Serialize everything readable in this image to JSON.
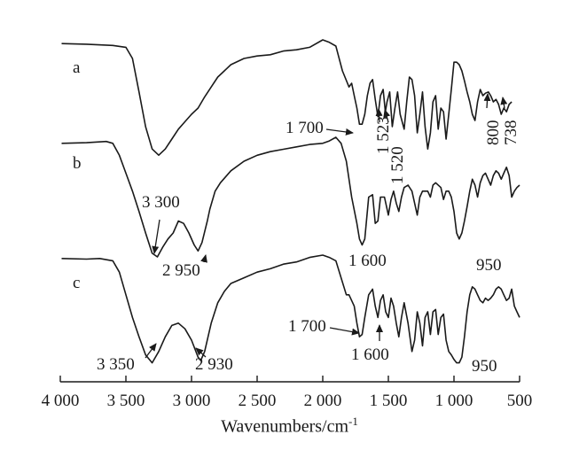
{
  "chart_data": {
    "type": "line",
    "title": "",
    "xlabel": "Wavenumbers/cm",
    "xlabel_superscript": "-1",
    "ylabel": "",
    "x_reversed": true,
    "xlim": [
      4000,
      500
    ],
    "x_ticks": [
      4000,
      3500,
      3000,
      2500,
      2000,
      1500,
      1000,
      500
    ],
    "x_tick_labels": [
      "4 000",
      "3 500",
      "3 000",
      "2 500",
      "2 000",
      "1 500",
      "1 000",
      "500"
    ],
    "grid": false,
    "legend": "none",
    "series": [
      {
        "name": "a",
        "points": [
          [
            3990,
            0.03
          ],
          [
            3800,
            0.035
          ],
          [
            3600,
            0.045
          ],
          [
            3500,
            0.06
          ],
          [
            3450,
            0.15
          ],
          [
            3400,
            0.42
          ],
          [
            3350,
            0.7
          ],
          [
            3300,
            0.88
          ],
          [
            3250,
            0.93
          ],
          [
            3200,
            0.88
          ],
          [
            3150,
            0.8
          ],
          [
            3100,
            0.72
          ],
          [
            3050,
            0.66
          ],
          [
            3000,
            0.6
          ],
          [
            2950,
            0.55
          ],
          [
            2900,
            0.46
          ],
          [
            2850,
            0.38
          ],
          [
            2800,
            0.3
          ],
          [
            2700,
            0.2
          ],
          [
            2600,
            0.15
          ],
          [
            2500,
            0.13
          ],
          [
            2400,
            0.12
          ],
          [
            2300,
            0.09
          ],
          [
            2200,
            0.08
          ],
          [
            2100,
            0.06
          ],
          [
            2000,
            0.0
          ],
          [
            1950,
            0.02
          ],
          [
            1900,
            0.05
          ],
          [
            1850,
            0.25
          ],
          [
            1800,
            0.38
          ],
          [
            1780,
            0.35
          ],
          [
            1760,
            0.45
          ],
          [
            1740,
            0.55
          ],
          [
            1720,
            0.68
          ],
          [
            1700,
            0.68
          ],
          [
            1680,
            0.6
          ],
          [
            1660,
            0.45
          ],
          [
            1640,
            0.35
          ],
          [
            1620,
            0.32
          ],
          [
            1600,
            0.48
          ],
          [
            1580,
            0.62
          ],
          [
            1560,
            0.45
          ],
          [
            1540,
            0.4
          ],
          [
            1523,
            0.58
          ],
          [
            1510,
            0.5
          ],
          [
            1490,
            0.42
          ],
          [
            1470,
            0.7
          ],
          [
            1450,
            0.55
          ],
          [
            1430,
            0.42
          ],
          [
            1410,
            0.6
          ],
          [
            1380,
            0.72
          ],
          [
            1360,
            0.5
          ],
          [
            1340,
            0.3
          ],
          [
            1320,
            0.32
          ],
          [
            1300,
            0.45
          ],
          [
            1280,
            0.75
          ],
          [
            1260,
            0.6
          ],
          [
            1240,
            0.42
          ],
          [
            1220,
            0.7
          ],
          [
            1200,
            0.88
          ],
          [
            1180,
            0.75
          ],
          [
            1160,
            0.5
          ],
          [
            1140,
            0.45
          ],
          [
            1120,
            0.72
          ],
          [
            1100,
            0.55
          ],
          [
            1080,
            0.58
          ],
          [
            1060,
            0.8
          ],
          [
            1040,
            0.6
          ],
          [
            1020,
            0.4
          ],
          [
            1000,
            0.18
          ],
          [
            980,
            0.18
          ],
          [
            960,
            0.2
          ],
          [
            940,
            0.25
          ],
          [
            920,
            0.33
          ],
          [
            900,
            0.42
          ],
          [
            880,
            0.5
          ],
          [
            860,
            0.6
          ],
          [
            840,
            0.65
          ],
          [
            820,
            0.5
          ],
          [
            800,
            0.4
          ],
          [
            780,
            0.45
          ],
          [
            760,
            0.43
          ],
          [
            738,
            0.42
          ],
          [
            720,
            0.45
          ],
          [
            700,
            0.5
          ],
          [
            680,
            0.48
          ],
          [
            660,
            0.52
          ],
          [
            640,
            0.6
          ],
          [
            620,
            0.55
          ],
          [
            600,
            0.58
          ],
          [
            580,
            0.52
          ],
          [
            560,
            0.5
          ]
        ]
      },
      {
        "name": "b",
        "points": [
          [
            3990,
            0.05
          ],
          [
            3800,
            0.045
          ],
          [
            3650,
            0.035
          ],
          [
            3600,
            0.05
          ],
          [
            3550,
            0.15
          ],
          [
            3500,
            0.3
          ],
          [
            3450,
            0.45
          ],
          [
            3400,
            0.62
          ],
          [
            3350,
            0.8
          ],
          [
            3300,
            0.97
          ],
          [
            3260,
            1.0
          ],
          [
            3220,
            0.92
          ],
          [
            3180,
            0.85
          ],
          [
            3140,
            0.8
          ],
          [
            3100,
            0.7
          ],
          [
            3060,
            0.72
          ],
          [
            3020,
            0.8
          ],
          [
            2980,
            0.9
          ],
          [
            2950,
            0.95
          ],
          [
            2920,
            0.88
          ],
          [
            2880,
            0.7
          ],
          [
            2860,
            0.6
          ],
          [
            2820,
            0.45
          ],
          [
            2780,
            0.38
          ],
          [
            2700,
            0.28
          ],
          [
            2600,
            0.2
          ],
          [
            2500,
            0.15
          ],
          [
            2400,
            0.12
          ],
          [
            2300,
            0.1
          ],
          [
            2200,
            0.08
          ],
          [
            2100,
            0.06
          ],
          [
            2000,
            0.05
          ],
          [
            1950,
            0.03
          ],
          [
            1900,
            0.0
          ],
          [
            1860,
            0.05
          ],
          [
            1820,
            0.2
          ],
          [
            1780,
            0.5
          ],
          [
            1740,
            0.72
          ],
          [
            1720,
            0.85
          ],
          [
            1700,
            0.9
          ],
          [
            1680,
            0.85
          ],
          [
            1650,
            0.5
          ],
          [
            1620,
            0.48
          ],
          [
            1600,
            0.72
          ],
          [
            1580,
            0.7
          ],
          [
            1560,
            0.5
          ],
          [
            1530,
            0.5
          ],
          [
            1500,
            0.65
          ],
          [
            1480,
            0.52
          ],
          [
            1460,
            0.45
          ],
          [
            1440,
            0.55
          ],
          [
            1420,
            0.62
          ],
          [
            1400,
            0.5
          ],
          [
            1380,
            0.42
          ],
          [
            1350,
            0.4
          ],
          [
            1320,
            0.45
          ],
          [
            1300,
            0.55
          ],
          [
            1280,
            0.65
          ],
          [
            1260,
            0.5
          ],
          [
            1240,
            0.45
          ],
          [
            1200,
            0.45
          ],
          [
            1180,
            0.5
          ],
          [
            1160,
            0.4
          ],
          [
            1140,
            0.38
          ],
          [
            1100,
            0.42
          ],
          [
            1080,
            0.52
          ],
          [
            1060,
            0.45
          ],
          [
            1040,
            0.45
          ],
          [
            1020,
            0.5
          ],
          [
            1000,
            0.62
          ],
          [
            980,
            0.8
          ],
          [
            960,
            0.85
          ],
          [
            940,
            0.8
          ],
          [
            920,
            0.7
          ],
          [
            900,
            0.58
          ],
          [
            880,
            0.45
          ],
          [
            860,
            0.35
          ],
          [
            840,
            0.4
          ],
          [
            820,
            0.5
          ],
          [
            800,
            0.38
          ],
          [
            780,
            0.32
          ],
          [
            760,
            0.3
          ],
          [
            740,
            0.35
          ],
          [
            720,
            0.4
          ],
          [
            700,
            0.32
          ],
          [
            680,
            0.28
          ],
          [
            660,
            0.3
          ],
          [
            640,
            0.35
          ],
          [
            620,
            0.3
          ],
          [
            600,
            0.25
          ],
          [
            580,
            0.32
          ],
          [
            560,
            0.5
          ],
          [
            540,
            0.45
          ],
          [
            520,
            0.42
          ],
          [
            500,
            0.4
          ]
        ]
      },
      {
        "name": "c",
        "points": [
          [
            3990,
            0.03
          ],
          [
            3800,
            0.035
          ],
          [
            3700,
            0.03
          ],
          [
            3600,
            0.05
          ],
          [
            3550,
            0.15
          ],
          [
            3500,
            0.35
          ],
          [
            3450,
            0.55
          ],
          [
            3400,
            0.72
          ],
          [
            3350,
            0.88
          ],
          [
            3300,
            0.95
          ],
          [
            3250,
            0.85
          ],
          [
            3200,
            0.72
          ],
          [
            3150,
            0.62
          ],
          [
            3100,
            0.6
          ],
          [
            3050,
            0.65
          ],
          [
            3000,
            0.75
          ],
          [
            2950,
            0.9
          ],
          [
            2930,
            0.93
          ],
          [
            2900,
            0.85
          ],
          [
            2850,
            0.6
          ],
          [
            2800,
            0.42
          ],
          [
            2750,
            0.32
          ],
          [
            2700,
            0.25
          ],
          [
            2600,
            0.2
          ],
          [
            2500,
            0.15
          ],
          [
            2400,
            0.12
          ],
          [
            2300,
            0.08
          ],
          [
            2200,
            0.06
          ],
          [
            2100,
            0.02
          ],
          [
            2000,
            0.0
          ],
          [
            1950,
            0.02
          ],
          [
            1900,
            0.05
          ],
          [
            1860,
            0.2
          ],
          [
            1820,
            0.35
          ],
          [
            1800,
            0.35
          ],
          [
            1760,
            0.45
          ],
          [
            1740,
            0.6
          ],
          [
            1720,
            0.72
          ],
          [
            1700,
            0.7
          ],
          [
            1680,
            0.55
          ],
          [
            1650,
            0.35
          ],
          [
            1620,
            0.3
          ],
          [
            1600,
            0.45
          ],
          [
            1580,
            0.55
          ],
          [
            1560,
            0.4
          ],
          [
            1540,
            0.35
          ],
          [
            1520,
            0.5
          ],
          [
            1500,
            0.55
          ],
          [
            1480,
            0.38
          ],
          [
            1460,
            0.45
          ],
          [
            1440,
            0.6
          ],
          [
            1420,
            0.72
          ],
          [
            1400,
            0.55
          ],
          [
            1380,
            0.42
          ],
          [
            1350,
            0.6
          ],
          [
            1320,
            0.85
          ],
          [
            1300,
            0.75
          ],
          [
            1280,
            0.5
          ],
          [
            1260,
            0.6
          ],
          [
            1240,
            0.8
          ],
          [
            1220,
            0.55
          ],
          [
            1200,
            0.5
          ],
          [
            1180,
            0.7
          ],
          [
            1160,
            0.5
          ],
          [
            1140,
            0.48
          ],
          [
            1120,
            0.7
          ],
          [
            1100,
            0.55
          ],
          [
            1080,
            0.52
          ],
          [
            1060,
            0.75
          ],
          [
            1040,
            0.85
          ],
          [
            1020,
            0.88
          ],
          [
            1000,
            0.92
          ],
          [
            980,
            0.95
          ],
          [
            960,
            0.95
          ],
          [
            940,
            0.9
          ],
          [
            920,
            0.72
          ],
          [
            900,
            0.5
          ],
          [
            880,
            0.35
          ],
          [
            860,
            0.28
          ],
          [
            840,
            0.3
          ],
          [
            820,
            0.35
          ],
          [
            800,
            0.4
          ],
          [
            780,
            0.42
          ],
          [
            760,
            0.38
          ],
          [
            740,
            0.4
          ],
          [
            720,
            0.38
          ],
          [
            700,
            0.35
          ],
          [
            680,
            0.3
          ],
          [
            660,
            0.28
          ],
          [
            640,
            0.3
          ],
          [
            620,
            0.35
          ],
          [
            600,
            0.4
          ],
          [
            580,
            0.38
          ],
          [
            560,
            0.3
          ],
          [
            540,
            0.45
          ],
          [
            520,
            0.5
          ],
          [
            500,
            0.55
          ]
        ]
      }
    ],
    "annotations": [
      {
        "curve": "a",
        "text": "1 700",
        "x": 1700
      },
      {
        "curve": "a",
        "text": "1 523",
        "x": 1523
      },
      {
        "curve": "a",
        "text": "1 520",
        "x": 1520
      },
      {
        "curve": "a",
        "text": "800",
        "x": 800
      },
      {
        "curve": "a",
        "text": "738",
        "x": 738
      },
      {
        "curve": "b",
        "text": "3 300",
        "x": 3300
      },
      {
        "curve": "b",
        "text": "2 950",
        "x": 2950
      },
      {
        "curve": "b",
        "text": "1 600",
        "x": 1600
      },
      {
        "curve": "b",
        "text": "950",
        "x": 950
      },
      {
        "curve": "c",
        "text": "3 350",
        "x": 3350
      },
      {
        "curve": "c",
        "text": "2 930",
        "x": 2930
      },
      {
        "curve": "c",
        "text": "1 700",
        "x": 1700
      },
      {
        "curve": "c",
        "text": "1 600",
        "x": 1600
      },
      {
        "curve": "c",
        "text": "950",
        "x": 950
      }
    ]
  }
}
